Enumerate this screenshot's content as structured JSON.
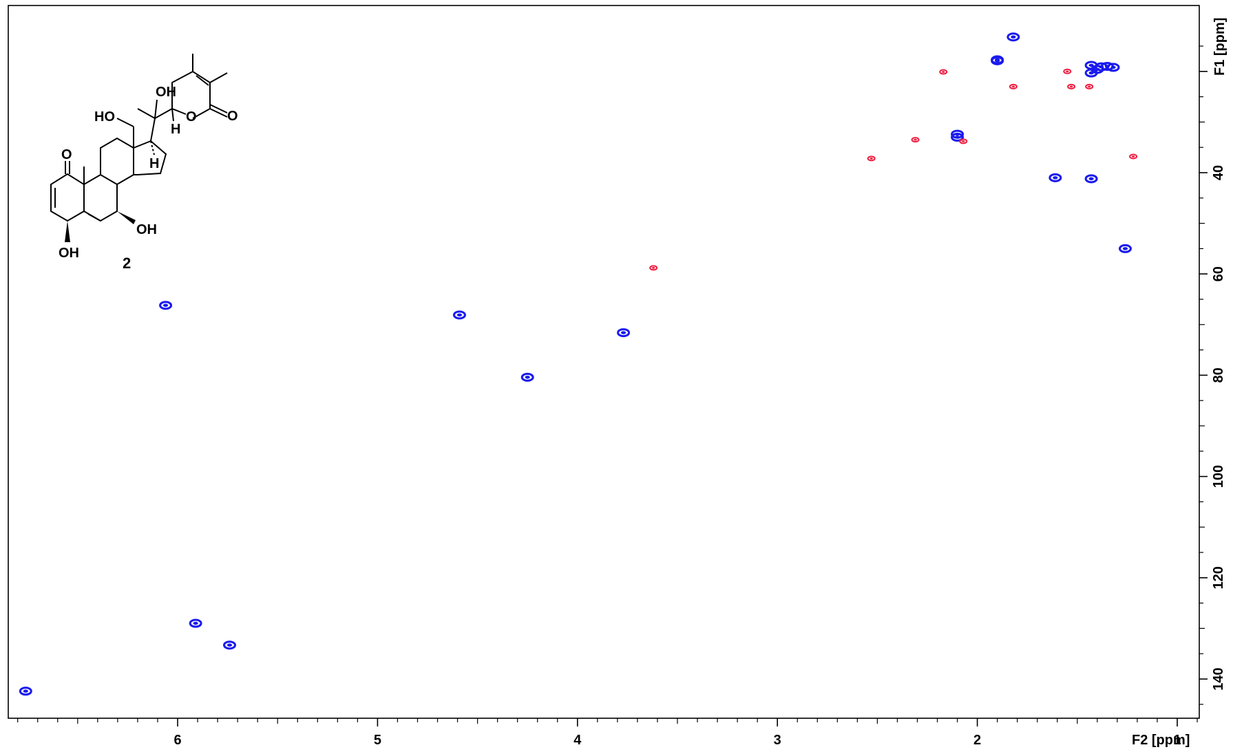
{
  "chart_data": {
    "type": "scatter",
    "subtype": "2D NMR HSQC contour map",
    "x_axis_label": "F2 [ppm]",
    "y_axis_label": "F1 [ppm]",
    "xlim": [
      6.85,
      0.9
    ],
    "ylim": [
      11,
      149
    ],
    "x_reversed": true,
    "y_reversed": true,
    "x_ticks": [
      6,
      5,
      4,
      3,
      2,
      1
    ],
    "y_ticks": [
      40,
      60,
      80,
      100,
      120,
      140
    ],
    "grid": false,
    "legend": "none",
    "colors": {
      "blue": "#1a1aee",
      "red": "#ee1c3e"
    },
    "series": [
      {
        "color": "blue",
        "points": [
          {
            "x": 1.82,
            "y": 13.2
          },
          {
            "x": 1.9,
            "y": 17.7
          },
          {
            "x": 1.9,
            "y": 17.9
          },
          {
            "x": 1.43,
            "y": 18.8
          },
          {
            "x": 1.38,
            "y": 19.1
          },
          {
            "x": 1.35,
            "y": 19.0
          },
          {
            "x": 1.4,
            "y": 19.6
          },
          {
            "x": 1.32,
            "y": 19.2
          },
          {
            "x": 1.43,
            "y": 20.3
          },
          {
            "x": 2.1,
            "y": 32.4
          },
          {
            "x": 2.1,
            "y": 33.0
          },
          {
            "x": 1.61,
            "y": 41.0
          },
          {
            "x": 1.43,
            "y": 41.2
          },
          {
            "x": 1.26,
            "y": 55.0
          },
          {
            "x": 6.06,
            "y": 66.2
          },
          {
            "x": 4.59,
            "y": 68.1
          },
          {
            "x": 3.77,
            "y": 71.6
          },
          {
            "x": 4.25,
            "y": 80.4
          },
          {
            "x": 5.91,
            "y": 129.0
          },
          {
            "x": 5.74,
            "y": 133.3
          },
          {
            "x": 6.76,
            "y": 142.4
          }
        ]
      },
      {
        "color": "red",
        "points": [
          {
            "x": 2.17,
            "y": 20.1
          },
          {
            "x": 1.82,
            "y": 23.0
          },
          {
            "x": 1.55,
            "y": 20.0
          },
          {
            "x": 1.53,
            "y": 23.0
          },
          {
            "x": 1.44,
            "y": 23.0
          },
          {
            "x": 2.31,
            "y": 33.5
          },
          {
            "x": 2.07,
            "y": 33.8
          },
          {
            "x": 2.53,
            "y": 37.2
          },
          {
            "x": 1.22,
            "y": 36.8
          },
          {
            "x": 3.62,
            "y": 58.8
          }
        ]
      }
    ],
    "annotations": [
      {
        "text": "2",
        "kind": "compound number"
      }
    ]
  },
  "structure": {
    "atom_labels": {
      "oh_top": "OH",
      "ho_left": "HO",
      "h_lactone": "H",
      "o_ring": "O",
      "o_carbonyl": "O",
      "o_ketone": "O",
      "h_17": "H",
      "oh_7": "OH",
      "oh_4": "OH"
    },
    "compound_number": "2"
  }
}
